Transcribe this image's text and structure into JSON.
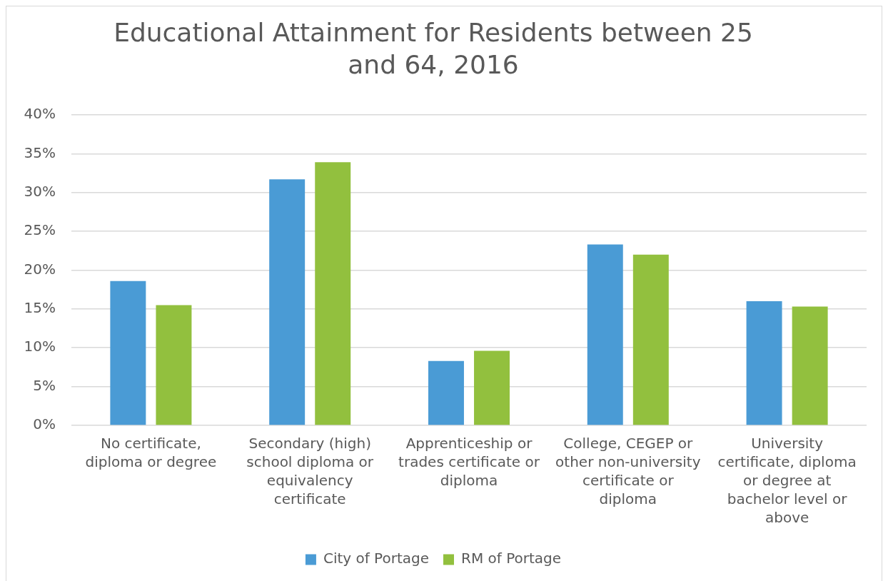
{
  "chart_data": {
    "type": "bar",
    "title": "Educational Attainment for Residents between 25 and 64, 2016",
    "categories": [
      "No certificate, diploma or degree",
      "Secondary (high) school diploma or equivalency certificate",
      "Apprenticeship or trades certificate or diploma",
      "College, CEGEP or other non-university certificate or diploma",
      "University certificate, diploma or degree at bachelor level or above"
    ],
    "series": [
      {
        "name": "City of Portage",
        "color": "#4a9bd5",
        "values": [
          18.6,
          31.7,
          8.3,
          23.3,
          16.0
        ]
      },
      {
        "name": "RM of Portage",
        "color": "#92c03e",
        "values": [
          15.5,
          33.9,
          9.6,
          22.0,
          15.3
        ]
      }
    ],
    "ylim": [
      0,
      40
    ],
    "yticks": [
      {
        "value": 0,
        "label": "0%"
      },
      {
        "value": 5,
        "label": "5%"
      },
      {
        "value": 10,
        "label": "10%"
      },
      {
        "value": 15,
        "label": "15%"
      },
      {
        "value": 20,
        "label": "20%"
      },
      {
        "value": 25,
        "label": "25%"
      },
      {
        "value": 30,
        "label": "30%"
      },
      {
        "value": 35,
        "label": "35%"
      },
      {
        "value": 40,
        "label": "40%"
      }
    ],
    "grid": "y",
    "legend": "bottom"
  }
}
